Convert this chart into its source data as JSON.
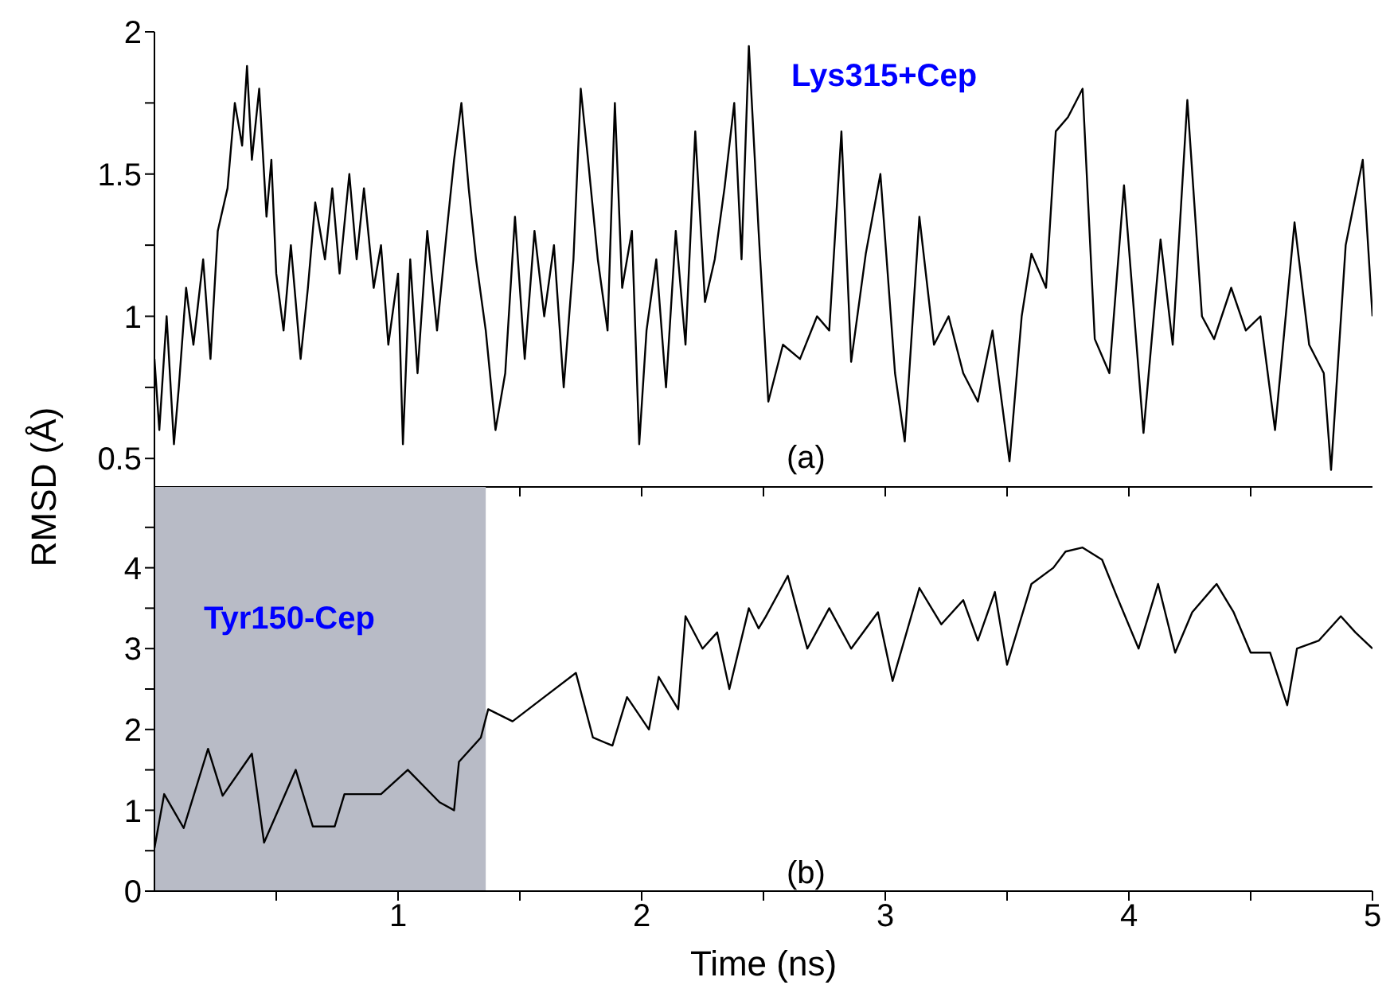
{
  "chart_data": [
    {
      "type": "line",
      "ylabel": "RMSD (Å)",
      "annotations": [
        "Lys315+Cep",
        "(a)"
      ],
      "xlim": [
        0,
        5
      ],
      "xticks": [
        {
          "value": 0.5,
          "label": null
        },
        {
          "value": 1,
          "label": null
        },
        {
          "value": 1.5,
          "label": null
        },
        {
          "value": 2,
          "label": null
        },
        {
          "value": 2.5,
          "label": null
        },
        {
          "value": 3,
          "label": null
        },
        {
          "value": 3.5,
          "label": null
        },
        {
          "value": 4,
          "label": null
        },
        {
          "value": 4.5,
          "label": null
        }
      ],
      "ylim": [
        0.4,
        2
      ],
      "yticks": [
        0.5,
        {
          "value": 0.75,
          "label": null
        },
        1,
        {
          "value": 1.25,
          "label": null
        },
        1.5,
        {
          "value": 1.75,
          "label": null
        },
        2
      ],
      "tick_labels": "y",
      "marker": "none",
      "line_style": "solid",
      "x": [
        0,
        0.02,
        0.05,
        0.08,
        0.1,
        0.13,
        0.16,
        0.2,
        0.23,
        0.26,
        0.3,
        0.33,
        0.36,
        0.38,
        0.4,
        0.43,
        0.46,
        0.48,
        0.5,
        0.53,
        0.56,
        0.6,
        0.63,
        0.66,
        0.7,
        0.73,
        0.76,
        0.8,
        0.83,
        0.86,
        0.9,
        0.93,
        0.96,
        1.0,
        1.02,
        1.05,
        1.08,
        1.12,
        1.16,
        1.2,
        1.23,
        1.26,
        1.29,
        1.32,
        1.36,
        1.4,
        1.44,
        1.48,
        1.52,
        1.56,
        1.6,
        1.64,
        1.68,
        1.72,
        1.75,
        1.78,
        1.82,
        1.86,
        1.89,
        1.92,
        1.96,
        1.99,
        2.02,
        2.06,
        2.1,
        2.14,
        2.18,
        2.22,
        2.26,
        2.3,
        2.34,
        2.38,
        2.41,
        2.44,
        2.48,
        2.52,
        2.58,
        2.65,
        2.72,
        2.77,
        2.82,
        2.86,
        2.92,
        2.98,
        3.04,
        3.08,
        3.14,
        3.2,
        3.26,
        3.32,
        3.38,
        3.44,
        3.51,
        3.56,
        3.6,
        3.66,
        3.7,
        3.75,
        3.81,
        3.86,
        3.92,
        3.98,
        4.06,
        4.13,
        4.18,
        4.24,
        4.3,
        4.35,
        4.42,
        4.48,
        4.54,
        4.6,
        4.68,
        4.74,
        4.8,
        4.83,
        4.89,
        4.96,
        5.0
      ],
      "series": [
        {
          "color": "#000000",
          "values": [
            0.85,
            0.6,
            1.0,
            0.55,
            0.75,
            1.1,
            0.9,
            1.2,
            0.85,
            1.3,
            1.45,
            1.75,
            1.6,
            1.88,
            1.55,
            1.8,
            1.35,
            1.55,
            1.15,
            0.95,
            1.25,
            0.85,
            1.1,
            1.4,
            1.2,
            1.45,
            1.15,
            1.5,
            1.2,
            1.45,
            1.1,
            1.25,
            0.9,
            1.15,
            0.55,
            1.2,
            0.8,
            1.3,
            0.95,
            1.3,
            1.55,
            1.75,
            1.45,
            1.2,
            0.95,
            0.6,
            0.8,
            1.35,
            0.85,
            1.3,
            1.0,
            1.25,
            0.75,
            1.2,
            1.8,
            1.55,
            1.2,
            0.95,
            1.75,
            1.1,
            1.3,
            0.55,
            0.95,
            1.2,
            0.75,
            1.3,
            0.9,
            1.65,
            1.05,
            1.2,
            1.45,
            1.75,
            1.2,
            1.95,
            1.3,
            0.7,
            0.9,
            0.85,
            1.0,
            0.95,
            1.65,
            0.84,
            1.22,
            1.5,
            0.8,
            0.56,
            1.35,
            0.9,
            1.0,
            0.8,
            0.7,
            0.95,
            0.49,
            1.0,
            1.22,
            1.1,
            1.65,
            1.7,
            1.8,
            0.92,
            0.8,
            1.46,
            0.59,
            1.27,
            0.9,
            1.76,
            1.0,
            0.92,
            1.1,
            0.95,
            1.0,
            0.6,
            1.33,
            0.9,
            0.8,
            0.46,
            1.25,
            1.55,
            1.0
          ]
        }
      ]
    },
    {
      "type": "line",
      "xlabel": "Time (ns)",
      "annotations": [
        "Tyr150-Cep",
        "(b)"
      ],
      "xlim": [
        0,
        5
      ],
      "xticks": [
        {
          "value": 0.5,
          "label": null
        },
        1,
        {
          "value": 1.5,
          "label": null
        },
        2,
        {
          "value": 2.5,
          "label": null
        },
        3,
        {
          "value": 3.5,
          "label": null
        },
        4,
        {
          "value": 4.5,
          "label": null
        },
        5
      ],
      "ylim": [
        0,
        5
      ],
      "yticks": [
        0,
        {
          "value": 0.5,
          "label": null
        },
        1,
        {
          "value": 1.5,
          "label": null
        },
        2,
        {
          "value": 2.5,
          "label": null
        },
        3,
        {
          "value": 3.5,
          "label": null
        },
        4,
        {
          "value": 4.5,
          "label": null
        }
      ],
      "marker": "none",
      "line_style": "solid",
      "bands": [
        {
          "axis": "x",
          "from": 0,
          "to": 1.36,
          "color": "#b8bbc6"
        }
      ],
      "x": [
        0,
        0.04,
        0.12,
        0.22,
        0.28,
        0.4,
        0.45,
        0.58,
        0.65,
        0.74,
        0.78,
        0.93,
        1.04,
        1.17,
        1.23,
        1.25,
        1.34,
        1.37,
        1.47,
        1.6,
        1.73,
        1.8,
        1.88,
        1.94,
        2.03,
        2.07,
        2.15,
        2.18,
        2.25,
        2.31,
        2.36,
        2.44,
        2.48,
        2.51,
        2.6,
        2.68,
        2.77,
        2.86,
        2.97,
        3.03,
        3.14,
        3.23,
        3.32,
        3.38,
        3.45,
        3.5,
        3.6,
        3.69,
        3.74,
        3.81,
        3.89,
        3.95,
        4.04,
        4.12,
        4.19,
        4.26,
        4.36,
        4.43,
        4.5,
        4.58,
        4.65,
        4.69,
        4.78,
        4.87,
        4.93,
        5.0
      ],
      "series": [
        {
          "color": "#000000",
          "values": [
            0.53,
            1.2,
            0.78,
            1.76,
            1.18,
            1.7,
            0.6,
            1.5,
            0.8,
            0.8,
            1.2,
            1.2,
            1.5,
            1.1,
            1.0,
            1.6,
            1.9,
            2.25,
            2.1,
            2.4,
            2.7,
            1.9,
            1.8,
            2.4,
            2.0,
            2.65,
            2.25,
            3.4,
            3.0,
            3.2,
            2.5,
            3.5,
            3.25,
            3.4,
            3.9,
            3.0,
            3.5,
            3.0,
            3.45,
            2.6,
            3.75,
            3.3,
            3.6,
            3.1,
            3.7,
            2.8,
            3.8,
            4.0,
            4.2,
            4.25,
            4.1,
            3.65,
            3.0,
            3.8,
            2.95,
            3.45,
            3.8,
            3.45,
            2.95,
            2.95,
            2.3,
            3.0,
            3.1,
            3.4,
            3.2,
            3.0
          ]
        }
      ]
    }
  ]
}
